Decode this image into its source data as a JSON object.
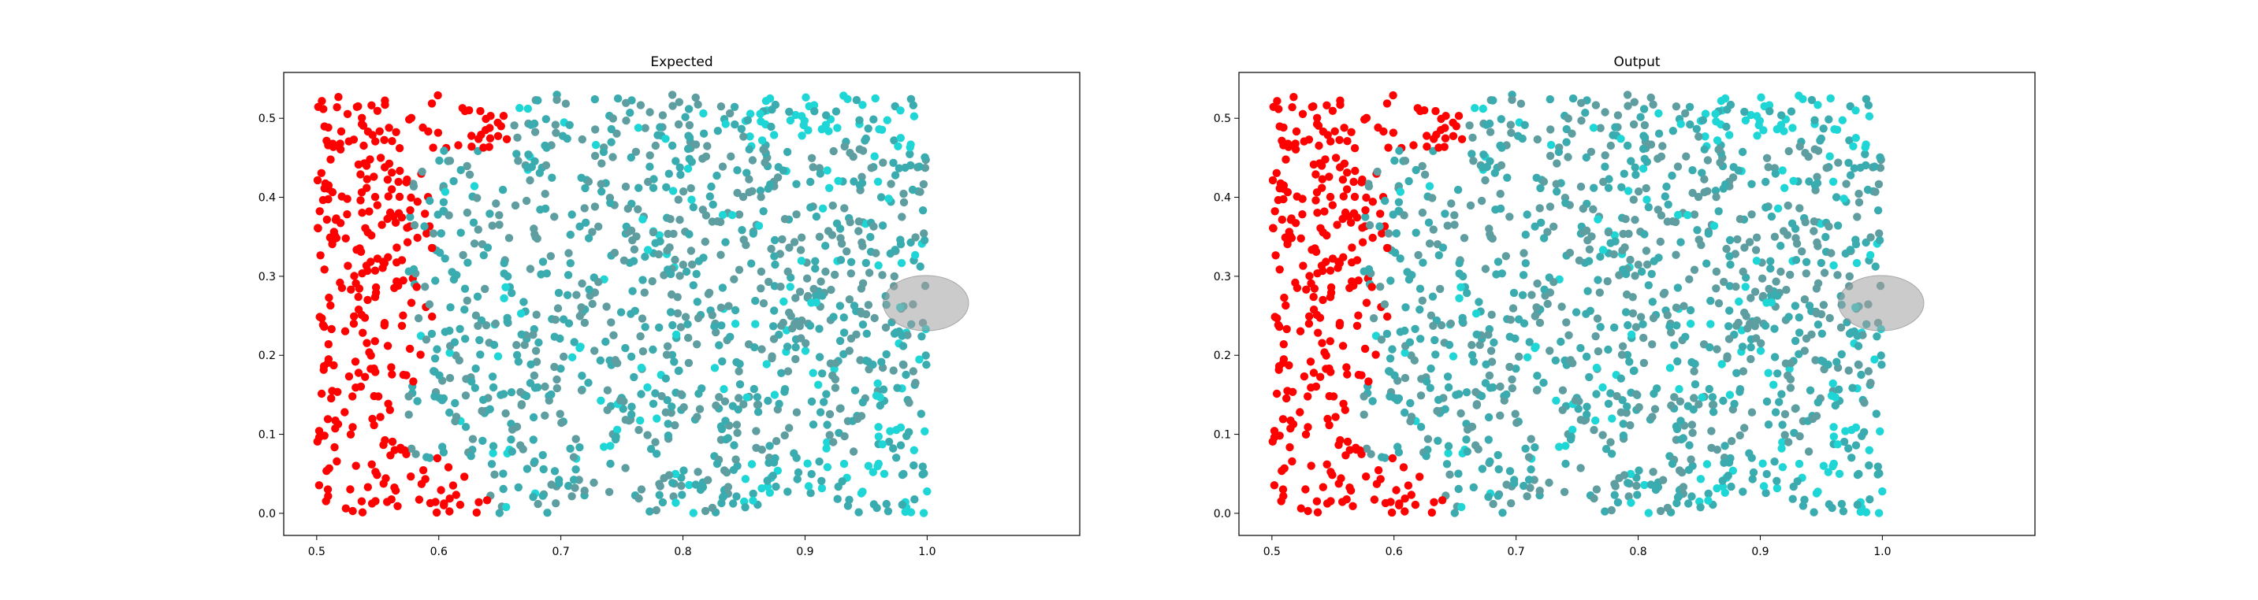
{
  "chart_data": [
    {
      "type": "scatter",
      "title": "Expected",
      "xlabel": "",
      "ylabel": "",
      "xlim": [
        0.473,
        1.125
      ],
      "ylim": [
        -0.028,
        0.558
      ],
      "xticks": [
        "0.5",
        "0.6",
        "0.7",
        "0.8",
        "0.9",
        "1.0"
      ],
      "xtick_values": [
        0.5,
        0.6,
        0.7,
        0.8,
        0.9,
        1.0
      ],
      "yticks": [
        "0.0",
        "0.1",
        "0.2",
        "0.3",
        "0.4",
        "0.5"
      ],
      "ytick_values": [
        0.0,
        0.1,
        0.2,
        0.3,
        0.4,
        0.5
      ],
      "grid": false,
      "points": {
        "count": 1500,
        "seed": 12345,
        "x_range": [
          0.5,
          1.0
        ],
        "y_range": [
          0.0,
          0.53
        ],
        "color_rule": "red where x < ~0.58 (plus a band x < ~0.66 near y > 0.45 and y < 0.07); otherwise shades of teal/cadetblue/cyan varying with position"
      },
      "colors": {
        "red": "#ff0000",
        "cadet": "#5f9ea0",
        "teal": "#3aacb0",
        "cyan": "#1ed6d6"
      },
      "highlight_ellipse": {
        "cx": 0.999,
        "cy": 0.266,
        "rx": 0.035,
        "ry": 0.035,
        "fill": "#a0a0a0",
        "opacity": 0.55
      }
    },
    {
      "type": "scatter",
      "title": "Output",
      "xlabel": "",
      "ylabel": "",
      "xlim": [
        0.473,
        1.125
      ],
      "ylim": [
        -0.028,
        0.558
      ],
      "xticks": [
        "0.5",
        "0.6",
        "0.7",
        "0.8",
        "0.9",
        "1.0"
      ],
      "xtick_values": [
        0.5,
        0.6,
        0.7,
        0.8,
        0.9,
        1.0
      ],
      "yticks": [
        "0.0",
        "0.1",
        "0.2",
        "0.3",
        "0.4",
        "0.5"
      ],
      "ytick_values": [
        0.0,
        0.1,
        0.2,
        0.3,
        0.4,
        0.5
      ],
      "grid": false,
      "points": {
        "count": 1500,
        "seed": 12345,
        "x_range": [
          0.5,
          1.0
        ],
        "y_range": [
          0.0,
          0.53
        ],
        "color_rule": "same layout as Expected; red where x < ~0.58 (plus a band x < ~0.66 near y > 0.45 and y < 0.07); otherwise shades of teal/cadetblue/cyan"
      },
      "colors": {
        "red": "#ff0000",
        "cadet": "#5f9ea0",
        "teal": "#3aacb0",
        "cyan": "#1ed6d6"
      },
      "highlight_ellipse": {
        "cx": 0.999,
        "cy": 0.266,
        "rx": 0.035,
        "ry": 0.035,
        "fill": "#a0a0a0",
        "opacity": 0.55
      }
    }
  ]
}
